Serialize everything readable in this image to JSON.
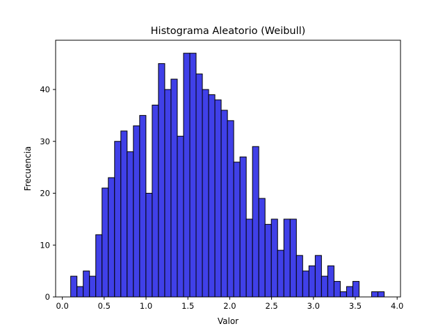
{
  "chart_data": {
    "type": "bar",
    "title": "Histograma Aleatorio (Weibull)",
    "xlabel": "Valor",
    "ylabel": "Frecuencia",
    "xlim": [
      -0.08,
      4.04
    ],
    "ylim": [
      0,
      49.5
    ],
    "xticks": [
      0.0,
      0.5,
      1.0,
      1.5,
      2.0,
      2.5,
      3.0,
      3.5,
      4.0
    ],
    "xtick_labels": [
      "0.0",
      "0.5",
      "1.0",
      "1.5",
      "2.0",
      "2.5",
      "3.0",
      "3.5",
      "4.0"
    ],
    "yticks": [
      0,
      10,
      20,
      30,
      40
    ],
    "ytick_labels": [
      "0",
      "10",
      "20",
      "30",
      "40"
    ],
    "grid": false,
    "bar_color": "#4040e8",
    "edge_color": "#000000",
    "bin_start": 0.1,
    "bin_width": 0.0749,
    "counts": [
      4,
      2,
      5,
      4,
      12,
      21,
      23,
      30,
      32,
      28,
      33,
      35,
      20,
      37,
      45,
      40,
      42,
      31,
      47,
      47,
      43,
      40,
      39,
      38,
      36,
      34,
      26,
      27,
      15,
      29,
      19,
      14,
      15,
      9,
      15,
      15,
      8,
      5,
      6,
      8,
      4,
      6,
      3,
      1,
      2,
      3,
      0,
      0,
      1,
      1
    ]
  }
}
